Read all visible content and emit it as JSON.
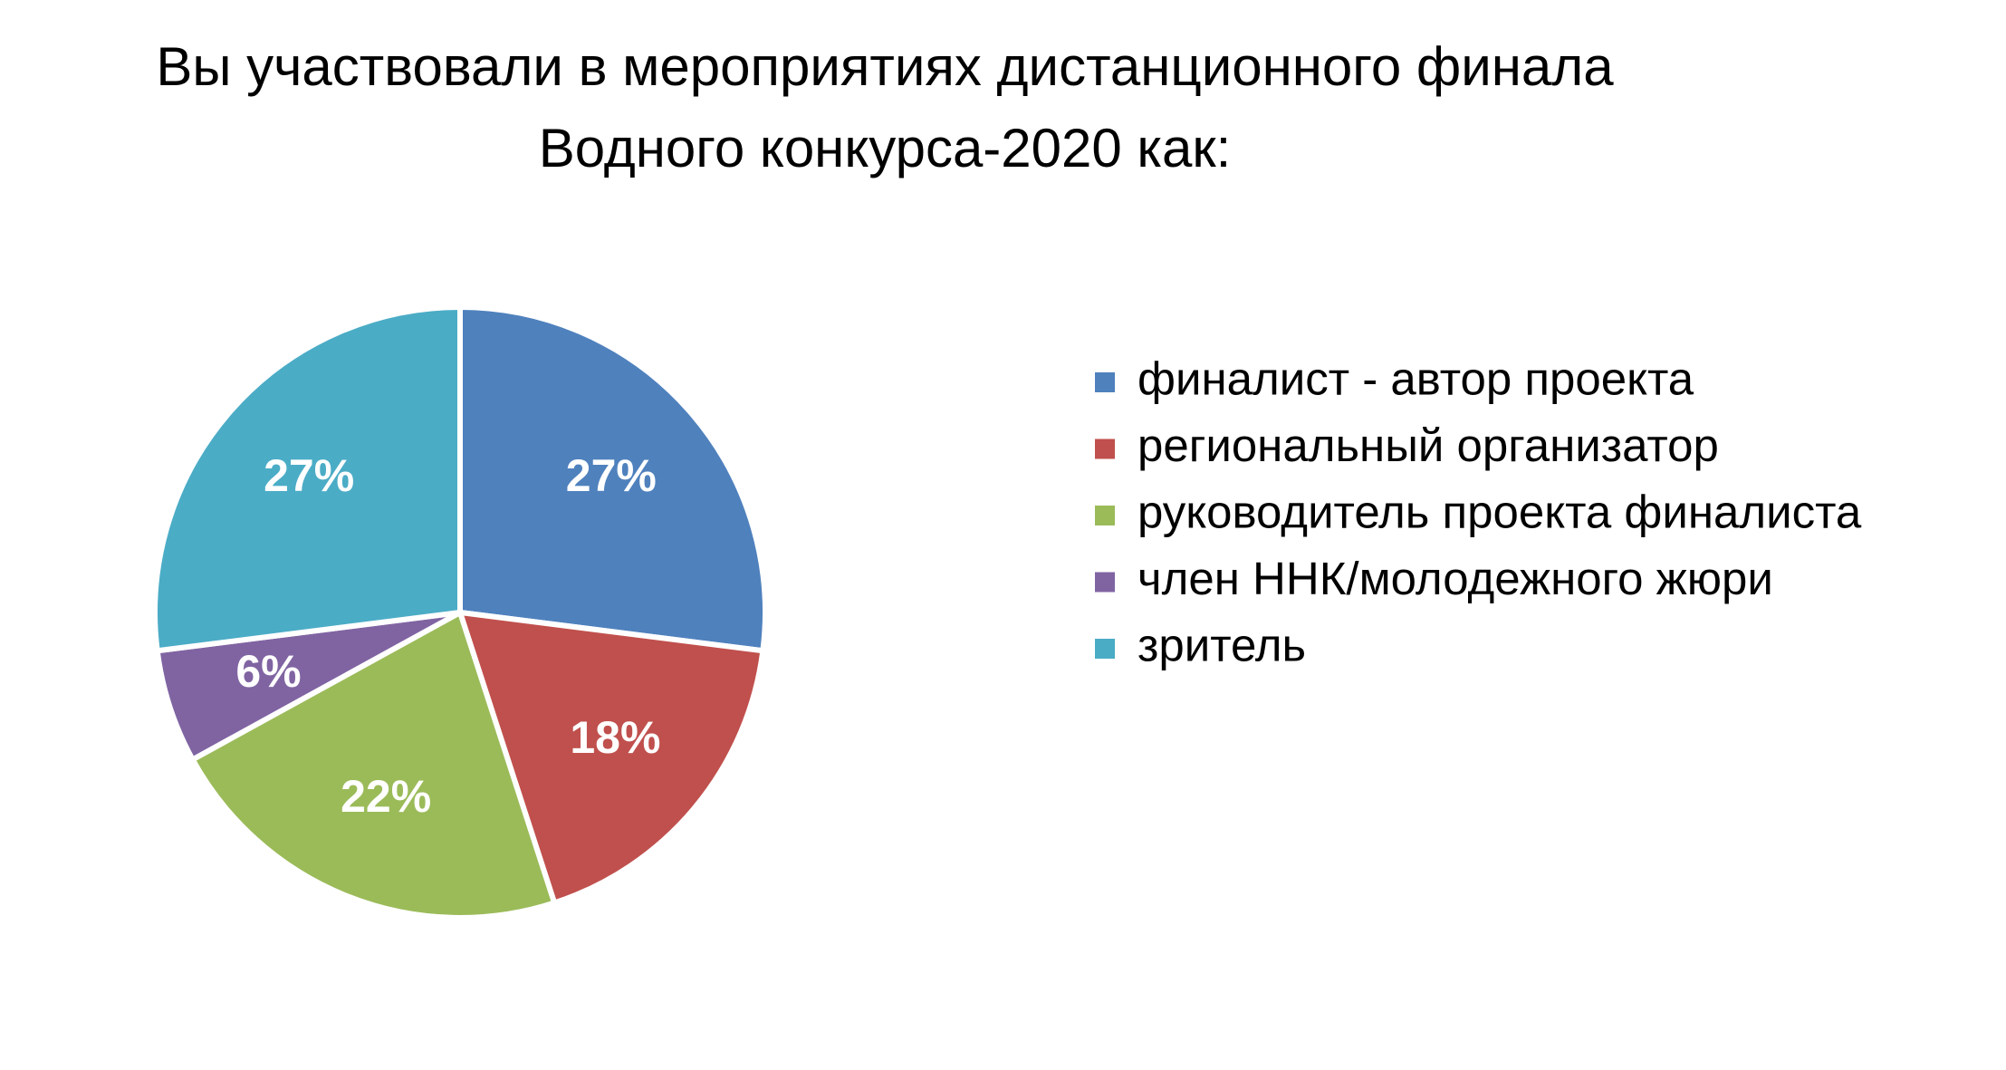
{
  "chart_data": {
    "type": "pie",
    "title": [
      "Вы участвовали в мероприятиях дистанционного финала",
      "Водного конкурса-2020 как:"
    ],
    "categories": [
      "финалист - автор проекта",
      "региональный организатор",
      "руководитель проекта финалиста",
      "член ННК/молодежного жюри",
      "зритель"
    ],
    "values": [
      27,
      18,
      22,
      6,
      27
    ],
    "value_labels": [
      "27%",
      "18%",
      "22%",
      "6%",
      "27%"
    ],
    "colors": [
      "#4f81bd",
      "#c0504d",
      "#9bbb59",
      "#8064a2",
      "#4bacc6"
    ],
    "legend": "right"
  }
}
